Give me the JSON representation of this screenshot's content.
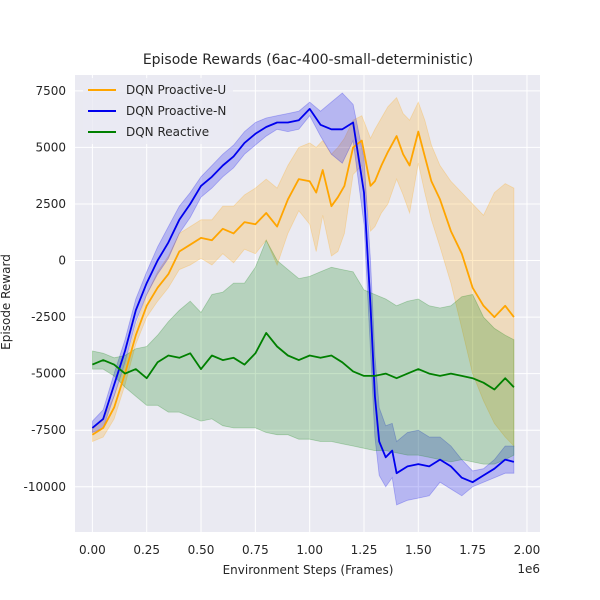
{
  "chart_data": {
    "type": "line",
    "title": "Episode Rewards (6ac-400-small-deterministic)",
    "xlabel": "Environment Steps (Frames)",
    "ylabel": "Episode Reward",
    "x_offset_label": "1e6",
    "xlim": [
      -0.08,
      2.06
    ],
    "ylim": [
      -12000,
      8200
    ],
    "xticks": [
      0.0,
      0.25,
      0.5,
      0.75,
      1.0,
      1.25,
      1.5,
      1.75,
      2.0
    ],
    "xtick_labels": [
      "0.00",
      "0.25",
      "0.50",
      "0.75",
      "1.00",
      "1.25",
      "1.50",
      "1.75",
      "2.00"
    ],
    "yticks": [
      -10000,
      -7500,
      -5000,
      -2500,
      0,
      2500,
      5000,
      7500
    ],
    "ytick_labels": [
      "-10000",
      "-7500",
      "-5000",
      "-2500",
      "0",
      "2500",
      "5000",
      "7500"
    ],
    "grid": true,
    "legend_position": "upper-left",
    "series": [
      {
        "name": "DQN Proactive-U",
        "color": "#ffa500",
        "x": [
          0,
          0.05,
          0.1,
          0.15,
          0.2,
          0.25,
          0.3,
          0.35,
          0.4,
          0.45,
          0.5,
          0.55,
          0.6,
          0.65,
          0.7,
          0.75,
          0.8,
          0.85,
          0.9,
          0.95,
          1.0,
          1.03,
          1.06,
          1.1,
          1.13,
          1.16,
          1.2,
          1.24,
          1.28,
          1.3,
          1.33,
          1.36,
          1.4,
          1.43,
          1.46,
          1.5,
          1.53,
          1.56,
          1.6,
          1.65,
          1.7,
          1.75,
          1.8,
          1.85,
          1.9,
          1.94
        ],
        "y": [
          -7700,
          -7400,
          -6500,
          -5000,
          -3300,
          -2000,
          -1200,
          -600,
          400,
          700,
          1000,
          900,
          1400,
          1200,
          1700,
          1600,
          2100,
          1500,
          2700,
          3600,
          3500,
          3000,
          4000,
          2400,
          2800,
          3300,
          5000,
          5300,
          3300,
          3500,
          4200,
          4800,
          5500,
          4700,
          4200,
          5700,
          4600,
          3500,
          2700,
          1300,
          300,
          -1200,
          -2000,
          -2500,
          -2000,
          -2500
        ],
        "upper": [
          -7400,
          -7000,
          -6000,
          -4600,
          -2900,
          -1500,
          -500,
          200,
          1200,
          1500,
          1800,
          1800,
          2400,
          2400,
          2900,
          3200,
          3600,
          3200,
          4200,
          5000,
          5200,
          5000,
          5300,
          4700,
          5000,
          5400,
          6200,
          6400,
          5400,
          5800,
          6300,
          6800,
          7200,
          6500,
          6200,
          7000,
          6200,
          5100,
          4200,
          3500,
          3000,
          2500,
          2000,
          3000,
          3400,
          3200
        ],
        "lower": [
          -8000,
          -7800,
          -7000,
          -5500,
          -3700,
          -2500,
          -1800,
          -1200,
          -400,
          -200,
          100,
          -200,
          300,
          -100,
          500,
          300,
          900,
          -200,
          1200,
          2200,
          1600,
          400,
          2000,
          200,
          400,
          1200,
          3800,
          4200,
          1300,
          1500,
          2100,
          2500,
          3600,
          2900,
          2100,
          4300,
          3000,
          1800,
          600,
          -1000,
          -3000,
          -5000,
          -6200,
          -7200,
          -7800,
          -8200
        ]
      },
      {
        "name": "DQN Proactive-N",
        "color": "#0000ee",
        "x": [
          0,
          0.05,
          0.1,
          0.15,
          0.2,
          0.25,
          0.3,
          0.35,
          0.4,
          0.45,
          0.5,
          0.55,
          0.6,
          0.65,
          0.7,
          0.75,
          0.8,
          0.85,
          0.9,
          0.95,
          1.0,
          1.05,
          1.1,
          1.15,
          1.2,
          1.25,
          1.28,
          1.3,
          1.32,
          1.35,
          1.38,
          1.4,
          1.45,
          1.5,
          1.55,
          1.6,
          1.65,
          1.7,
          1.75,
          1.8,
          1.85,
          1.9,
          1.94
        ],
        "y": [
          -7400,
          -7000,
          -5500,
          -4000,
          -2200,
          -1000,
          0,
          800,
          1800,
          2500,
          3300,
          3700,
          4200,
          4600,
          5200,
          5600,
          5900,
          6100,
          6100,
          6200,
          6700,
          6000,
          5800,
          5800,
          6100,
          3000,
          -2000,
          -6000,
          -8000,
          -8700,
          -8400,
          -9400,
          -9100,
          -9000,
          -9100,
          -8800,
          -9100,
          -9600,
          -9800,
          -9500,
          -9200,
          -8800,
          -8900
        ],
        "upper": [
          -7100,
          -6600,
          -5000,
          -3500,
          -1700,
          -500,
          600,
          1500,
          2400,
          3000,
          3700,
          4200,
          4700,
          5100,
          5700,
          6100,
          6300,
          6400,
          6500,
          6600,
          7000,
          6600,
          7000,
          7400,
          6900,
          4500,
          0,
          -4200,
          -6500,
          -7300,
          -7200,
          -8000,
          -7600,
          -7500,
          -7800,
          -7800,
          -8200,
          -8800,
          -9300,
          -9200,
          -8800,
          -8200,
          -8200
        ],
        "lower": [
          -7600,
          -7400,
          -6000,
          -4500,
          -2700,
          -1500,
          -600,
          100,
          1200,
          1900,
          2800,
          3200,
          3700,
          4100,
          4700,
          5100,
          5500,
          5800,
          5700,
          5800,
          6400,
          5500,
          4700,
          4300,
          5300,
          1600,
          -4000,
          -7800,
          -9500,
          -10000,
          -9600,
          -10800,
          -10600,
          -10500,
          -10400,
          -9800,
          -10100,
          -10400,
          -10000,
          -9800,
          -9600,
          -9400,
          -9400
        ]
      },
      {
        "name": "DQN Reactive",
        "color": "#008000",
        "x": [
          0,
          0.05,
          0.1,
          0.15,
          0.2,
          0.25,
          0.3,
          0.35,
          0.4,
          0.45,
          0.5,
          0.55,
          0.6,
          0.65,
          0.7,
          0.75,
          0.8,
          0.85,
          0.9,
          0.95,
          1.0,
          1.05,
          1.1,
          1.15,
          1.2,
          1.25,
          1.3,
          1.35,
          1.4,
          1.45,
          1.5,
          1.55,
          1.6,
          1.65,
          1.7,
          1.75,
          1.8,
          1.85,
          1.9,
          1.94
        ],
        "y": [
          -4600,
          -4400,
          -4600,
          -5000,
          -4800,
          -5200,
          -4500,
          -4200,
          -4300,
          -4100,
          -4800,
          -4200,
          -4400,
          -4300,
          -4600,
          -4100,
          -3200,
          -3800,
          -4200,
          -4400,
          -4200,
          -4300,
          -4200,
          -4500,
          -4900,
          -5100,
          -5100,
          -5000,
          -5200,
          -5000,
          -4800,
          -5000,
          -5100,
          -5000,
          -5100,
          -5200,
          -5400,
          -5700,
          -5200,
          -5600
        ],
        "upper": [
          -4000,
          -4100,
          -4300,
          -4200,
          -3900,
          -3800,
          -3300,
          -2700,
          -2200,
          -1800,
          -2300,
          -1500,
          -1400,
          -1000,
          -1000,
          -300,
          900,
          0,
          -400,
          -800,
          -700,
          -500,
          -300,
          -400,
          -500,
          -1300,
          -1500,
          -1700,
          -2000,
          -1800,
          -1700,
          -2000,
          -2100,
          -2000,
          -1600,
          -1500,
          -2500,
          -3000,
          -3300,
          -3500
        ],
        "lower": [
          -4800,
          -4800,
          -5100,
          -5600,
          -6000,
          -6400,
          -6400,
          -6700,
          -6700,
          -6900,
          -7100,
          -7000,
          -7300,
          -7400,
          -7400,
          -7400,
          -7600,
          -7700,
          -7700,
          -7900,
          -7900,
          -8000,
          -8000,
          -8100,
          -8200,
          -8300,
          -8400,
          -8400,
          -8500,
          -8600,
          -8600,
          -8700,
          -8800,
          -8900,
          -8800,
          -8900,
          -9000,
          -9000,
          -8800,
          -8600
        ]
      }
    ]
  }
}
